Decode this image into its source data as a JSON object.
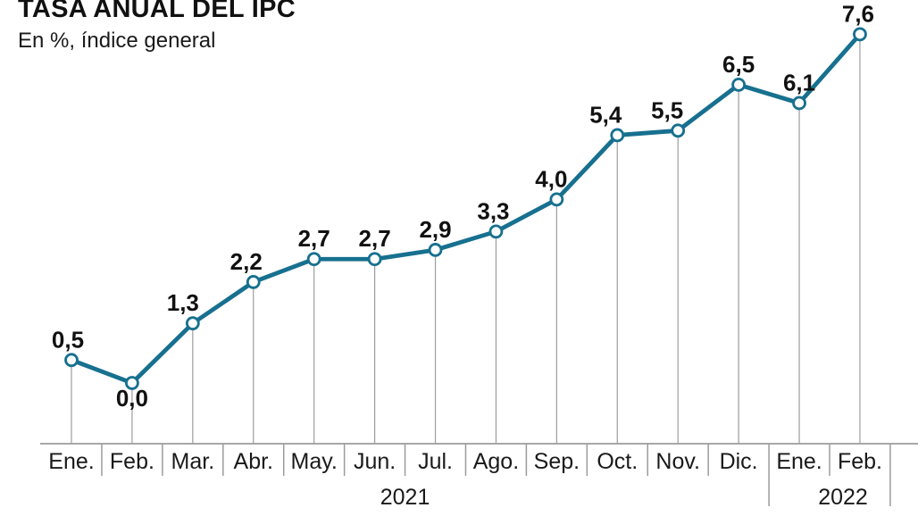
{
  "header": {
    "title": "TASA ANUAL DEL IPC",
    "subtitle": "En %, índice general"
  },
  "chart_data": {
    "type": "line",
    "title": "TASA ANUAL DEL IPC",
    "subtitle": "En %, índice general",
    "categories": [
      "Ene.",
      "Feb.",
      "Mar.",
      "Abr.",
      "May.",
      "Jun.",
      "Jul.",
      "Ago.",
      "Sep.",
      "Oct.",
      "Nov.",
      "Dic.",
      "Ene.",
      "Feb."
    ],
    "values": [
      0.5,
      0.0,
      1.3,
      2.2,
      2.7,
      2.7,
      2.9,
      3.3,
      4.0,
      5.4,
      5.5,
      6.5,
      6.1,
      7.6
    ],
    "value_labels": [
      "0,5",
      "0,0",
      "1,3",
      "2,2",
      "2,7",
      "2,7",
      "2,9",
      "3,3",
      "4,0",
      "5,4",
      "5,5",
      "6,5",
      "6,1",
      "7,6"
    ],
    "year_groups": [
      {
        "label": "2021",
        "from": 0,
        "to": 11
      },
      {
        "label": "2022",
        "from": 12,
        "to": 13
      }
    ],
    "ylim": [
      0,
      8
    ],
    "xlabel": "",
    "ylabel": "",
    "grid": false,
    "legend": "none",
    "marker": "open-circle",
    "colors": {
      "line": "#17708f",
      "marker_fill": "#ffffff",
      "axis_gray": "#9c9c9c",
      "text": "#111111"
    }
  }
}
